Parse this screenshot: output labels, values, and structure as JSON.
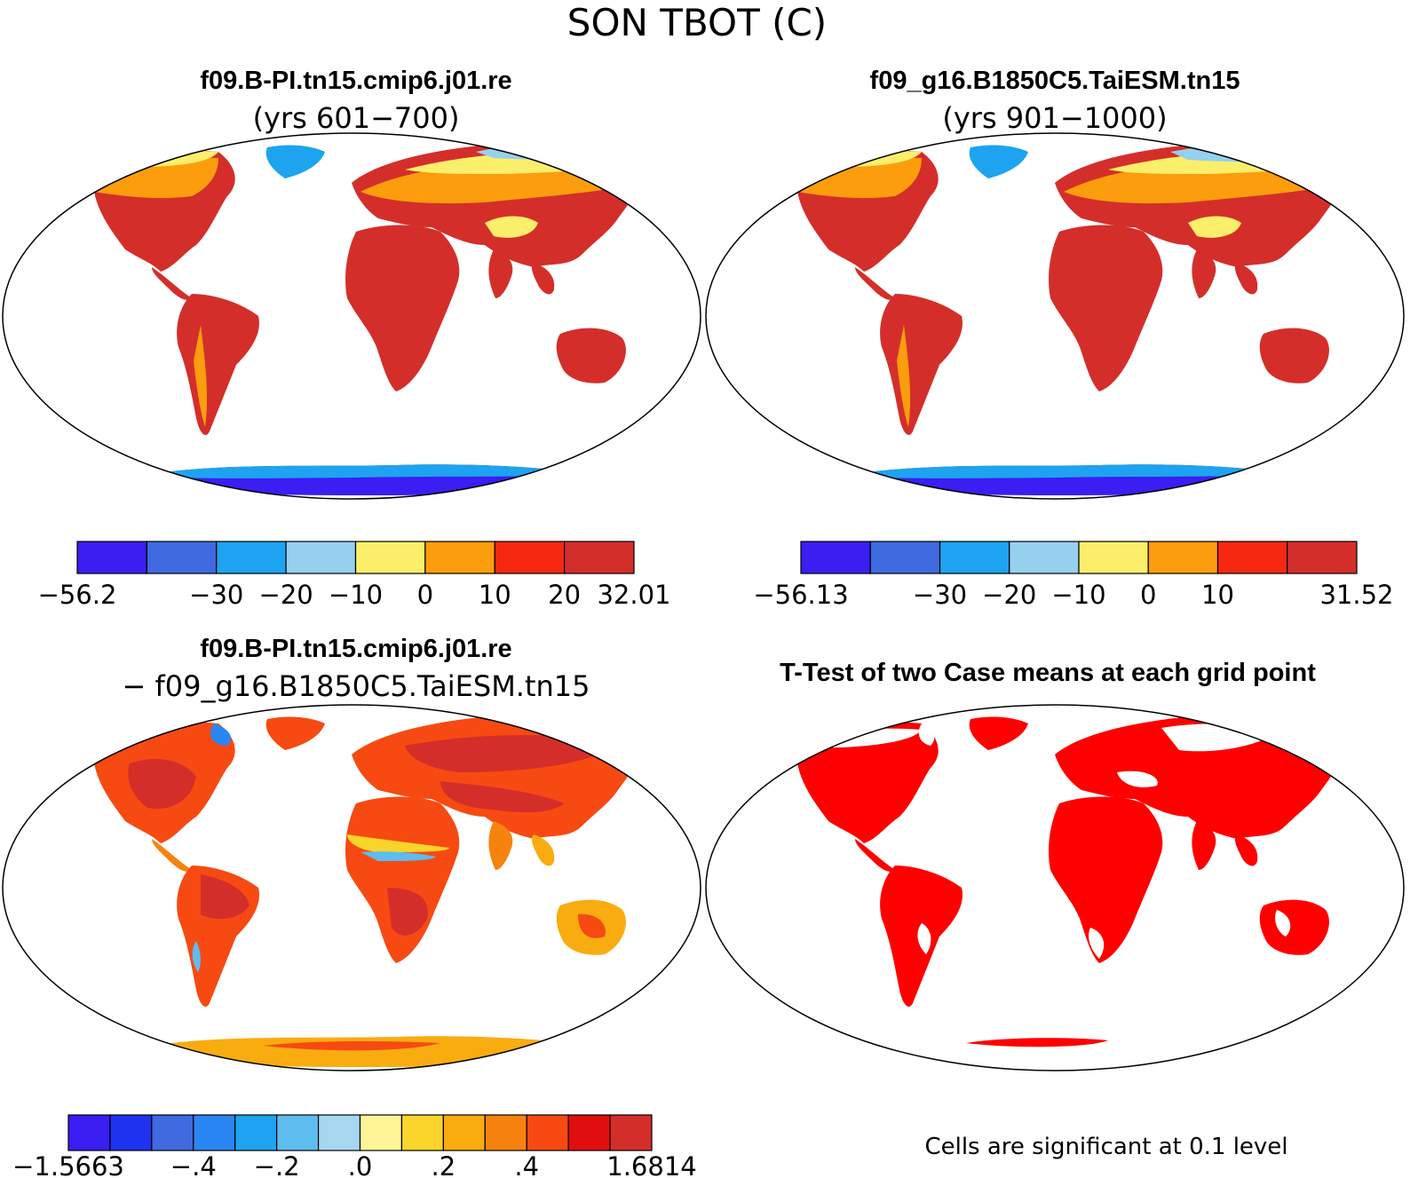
{
  "figure_title": "SON TBOT (C)",
  "panels": [
    {
      "title": "f09.B-PI.tn15.cmip6.j01.re",
      "subtitle": "(yrs 601−700)",
      "colorbar": {
        "colors": [
          "#3a1ef2",
          "#3f6ae0",
          "#1ea3f0",
          "#96d0ef",
          "#fbee6b",
          "#fb9d0d",
          "#f62812",
          "#d42e2a"
        ],
        "labels": [
          "−56.2",
          "−30",
          "−20",
          "−10",
          "0",
          "10",
          "20",
          "32.01"
        ]
      }
    },
    {
      "title": "f09_g16.B1850C5.TaiESM.tn15",
      "subtitle": "(yrs 901−1000)",
      "colorbar": {
        "colors": [
          "#3a1ef2",
          "#3f6ae0",
          "#1ea3f0",
          "#96d0ef",
          "#fbee6b",
          "#fb9d0d",
          "#f62812",
          "#d42e2a"
        ],
        "labels": [
          "−56.13",
          "−30",
          "−20",
          "−10",
          "0",
          "10",
          "31.52"
        ]
      }
    },
    {
      "title": "f09.B-PI.tn15.cmip6.j01.re",
      "subtitle": "− f09_g16.B1850C5.TaiESM.tn15",
      "colorbar": {
        "colors": [
          "#3a1ef2",
          "#1e32f0",
          "#3f6ae0",
          "#2a86f2",
          "#1ea3f0",
          "#5ebcef",
          "#a6d6f0",
          "#fdf596",
          "#f9d42b",
          "#f9ac10",
          "#f7830e",
          "#f64a12",
          "#e00e0e",
          "#d42e2a"
        ],
        "labels": [
          "−1.5663",
          "−.4",
          "−.2",
          ".0",
          ".2",
          ".4",
          "1.6814"
        ]
      }
    },
    {
      "title": "T-Test of two Case means at each grid point",
      "footer": "Cells are significant at 0.1 level"
    }
  ]
}
